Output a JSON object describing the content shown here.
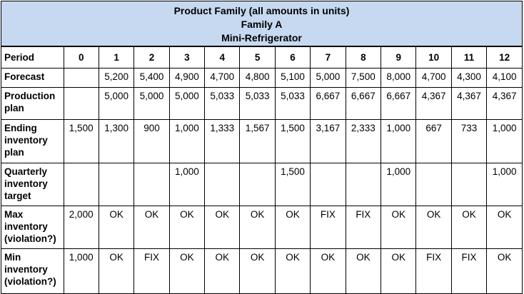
{
  "header": {
    "lines": [
      "Product Family (all amounts in units)",
      "Family A",
      "Mini-Refrigerator"
    ]
  },
  "table": {
    "columns": [
      "Period",
      "0",
      "1",
      "2",
      "3",
      "4",
      "5",
      "6",
      "7",
      "8",
      "9",
      "10",
      "11",
      "12"
    ],
    "rows": [
      [
        "Forecast",
        null,
        "5,200",
        "5,400",
        "4,900",
        "4,700",
        "4,800",
        "5,100",
        "5,000",
        "7,500",
        "8,000",
        "4,700",
        "4,300",
        "4,100"
      ],
      [
        "Production plan",
        null,
        "5,000",
        "5,000",
        "5,000",
        "5,033",
        "5,033",
        "5,033",
        "6,667",
        "6,667",
        "6,667",
        "4,367",
        "4,367",
        "4,367"
      ],
      [
        "Ending inventory plan",
        "1,500",
        "1,300",
        "900",
        "1,000",
        "1,333",
        "1,567",
        "1,500",
        "3,167",
        "2,333",
        "1,000",
        "667",
        "733",
        "1,000"
      ],
      [
        "Quarterly inventory target",
        null,
        null,
        null,
        "1,000",
        null,
        null,
        "1,500",
        null,
        null,
        "1,000",
        null,
        null,
        "1,000"
      ],
      [
        "Max inventory (violation?)",
        "2,000",
        "OK",
        "OK",
        "OK",
        "OK",
        "OK",
        "OK",
        "FIX",
        "FIX",
        "OK",
        "OK",
        "OK",
        "OK"
      ],
      [
        "Min inventory (violation?)",
        "1,000",
        "OK",
        "FIX",
        "OK",
        "OK",
        "OK",
        "OK",
        "OK",
        "OK",
        "OK",
        "FIX",
        "FIX",
        "OK"
      ]
    ]
  }
}
